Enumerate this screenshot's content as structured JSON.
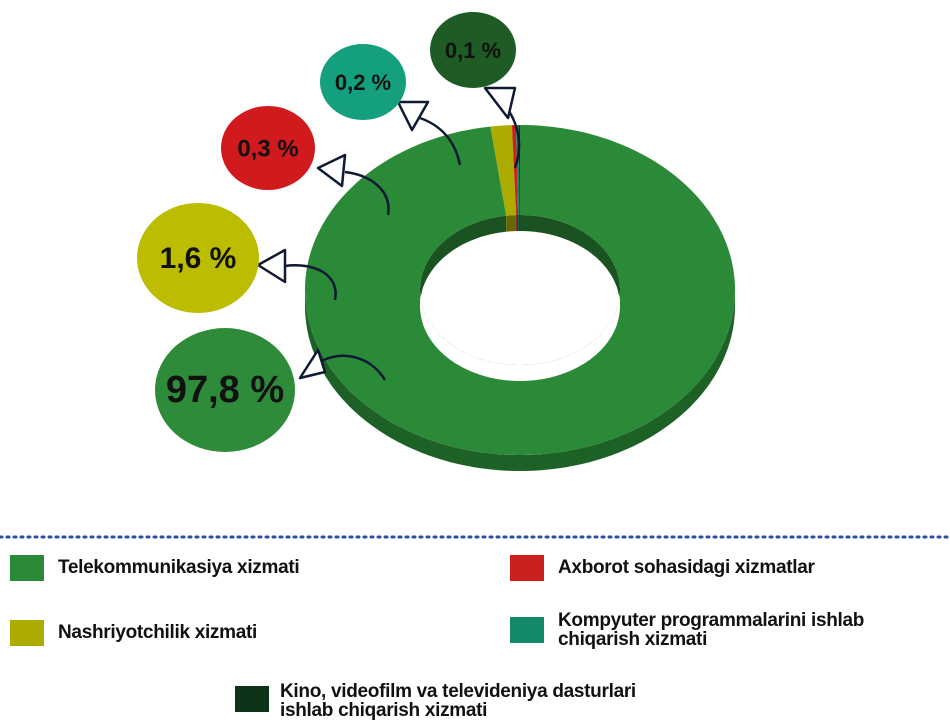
{
  "chart_data": {
    "type": "pie",
    "donut": true,
    "categories": [
      "Telekommunikasiya  xizmati",
      "Nashriyotchilik xizmati",
      "Axborot sohasidagi xizmatlar",
      "Kompyuter programmalarini ishlab chiqarish xizmati",
      "Kino, videofilm va televideniya dasturlari  ishlab chiqarish xizmati"
    ],
    "values": [
      97.8,
      1.6,
      0.3,
      0.2,
      0.1
    ],
    "value_labels": [
      "97,8 %",
      "1,6 %",
      "0,3 %",
      "0,2 %",
      "0,1 %"
    ],
    "colors": [
      "#2b8a37",
      "#abab00",
      "#cc1f1f",
      "#138a6c",
      "#0f3318"
    ],
    "label_colors": [
      "#2e8b3a",
      "#bcbc00",
      "#d11a1e",
      "#14a07e",
      "#1e5b25"
    ]
  }
}
